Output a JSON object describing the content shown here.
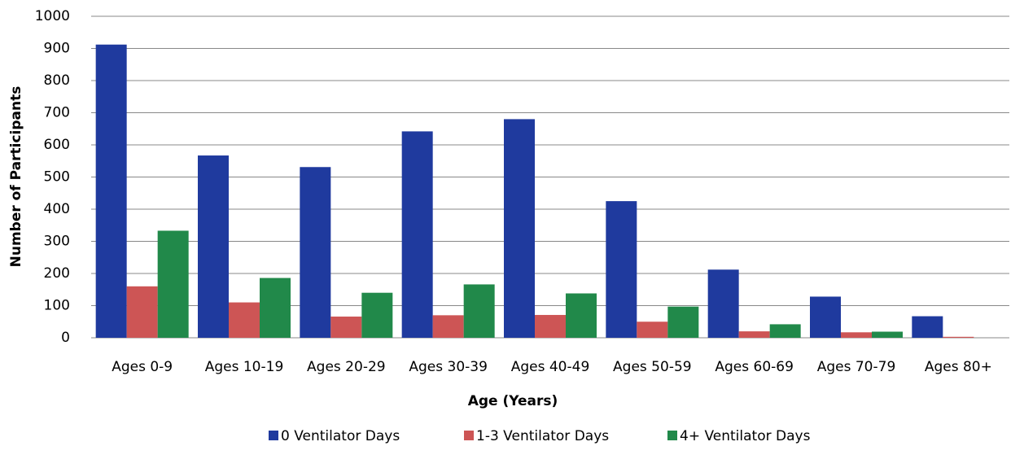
{
  "chart_data": {
    "type": "bar",
    "x_label": "Age (Years)",
    "y_label": "Number of Participants",
    "categories": [
      "Ages 0-9",
      "Ages 10-19",
      "Ages 20-29",
      "Ages 30-39",
      "Ages 40-49",
      "Ages 50-59",
      "Ages 60-69",
      "Ages 70-79",
      "Ages 80+"
    ],
    "series": [
      {
        "name": "0 Ventilator Days",
        "color": "#1f3a9e",
        "values": [
          912,
          567,
          531,
          642,
          680,
          425,
          212,
          128,
          67
        ]
      },
      {
        "name": "1-3 Ventilator Days",
        "color": "#cd5555",
        "values": [
          160,
          110,
          66,
          70,
          71,
          50,
          20,
          17,
          3
        ]
      },
      {
        "name": "4+ Ventilator Days",
        "color": "#21894a",
        "values": [
          333,
          186,
          140,
          166,
          138,
          97,
          42,
          19,
          0
        ]
      }
    ],
    "ylim": [
      0,
      1000
    ],
    "yticks": [
      0,
      100,
      200,
      300,
      400,
      500,
      600,
      700,
      800,
      900,
      1000
    ],
    "grid": true,
    "legend": "bottom"
  }
}
